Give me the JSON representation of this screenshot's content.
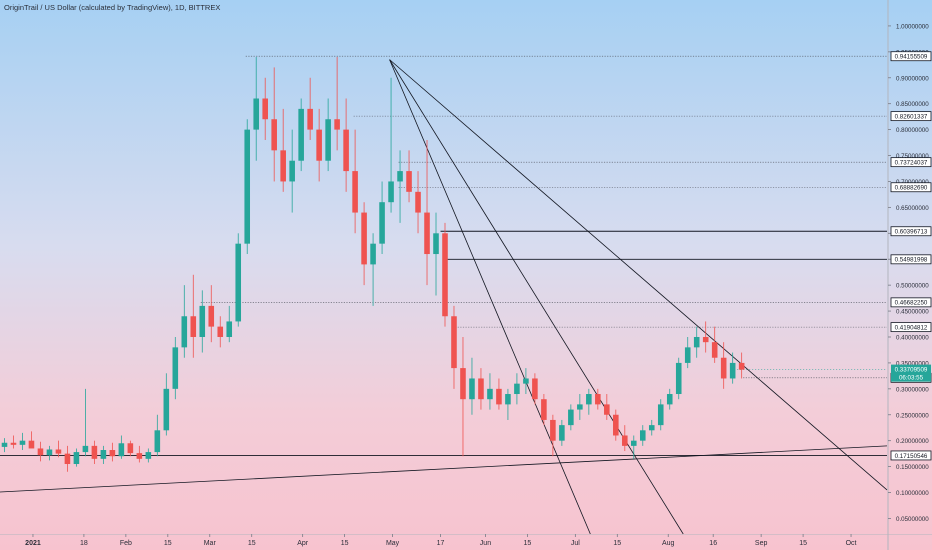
{
  "chart_data": {
    "type": "candlestick",
    "title": "OriginTrail / US Dollar (calculated by TradingView), 1D, BITTREX",
    "colors": {
      "up": "#26a69a",
      "down": "#ef5350",
      "line": "#131722",
      "price_tag": "#26a69a"
    },
    "x_axis": {
      "range": [
        "2020-12-21",
        "2021-10-13"
      ],
      "ticks": [
        {
          "date": "2021-01-01",
          "label": "2021"
        },
        {
          "date": "2021-01-18",
          "label": "18"
        },
        {
          "date": "2021-02-01",
          "label": "Feb"
        },
        {
          "date": "2021-02-15",
          "label": "15"
        },
        {
          "date": "2021-03-01",
          "label": "Mar"
        },
        {
          "date": "2021-03-15",
          "label": "15"
        },
        {
          "date": "2021-04-01",
          "label": "Apr"
        },
        {
          "date": "2021-04-15",
          "label": "15"
        },
        {
          "date": "2021-05-01",
          "label": "May"
        },
        {
          "date": "2021-05-17",
          "label": "17"
        },
        {
          "date": "2021-06-01",
          "label": "Jun"
        },
        {
          "date": "2021-06-15",
          "label": "15"
        },
        {
          "date": "2021-07-01",
          "label": "Jul"
        },
        {
          "date": "2021-07-15",
          "label": "15"
        },
        {
          "date": "2021-08-01",
          "label": "Aug"
        },
        {
          "date": "2021-08-16",
          "label": "16"
        },
        {
          "date": "2021-09-01",
          "label": "Sep"
        },
        {
          "date": "2021-09-15",
          "label": "15"
        },
        {
          "date": "2021-10-01",
          "label": "Oct"
        }
      ]
    },
    "y_axis": {
      "range": [
        0.02,
        1.05
      ],
      "ticks": [
        "0.05000000",
        "0.10000000",
        "0.15000000",
        "0.20000000",
        "0.25000000",
        "0.30000000",
        "0.35000000",
        "0.40000000",
        "0.45000000",
        "0.50000000",
        "0.55000000",
        "0.60000000",
        "0.65000000",
        "0.70000000",
        "0.75000000",
        "0.80000000",
        "0.85000000",
        "0.90000000",
        "0.95000000",
        "1.00000000"
      ]
    },
    "level_labels": [
      {
        "value": 0.94155509,
        "label": "0.94155509"
      },
      {
        "value": 0.82601337,
        "label": "0.82601337"
      },
      {
        "value": 0.73724037,
        "label": "0.73724037"
      },
      {
        "value": 0.6888269,
        "label": "0.68882690"
      },
      {
        "value": 0.60396713,
        "label": "0.60396713"
      },
      {
        "value": 0.54981998,
        "label": "0.54981998"
      },
      {
        "value": 0.4668225,
        "label": "0.46682250"
      },
      {
        "value": 0.41904812,
        "label": "0.41904812"
      },
      {
        "value": 0.32127923,
        "label": "0.32127923"
      },
      {
        "value": 0.17150546,
        "label": "0.17150546"
      }
    ],
    "price_tag": {
      "value": 0.33709509,
      "label": "0.33709509",
      "countdown": "06:03:55"
    },
    "horizontal_levels": [
      {
        "value": 0.94155509,
        "from": "2021-03-13",
        "to": "2021-10-13",
        "style": "dotted"
      },
      {
        "value": 0.82601337,
        "from": "2021-04-18",
        "to": "2021-10-13",
        "style": "dotted"
      },
      {
        "value": 0.73724037,
        "from": "2021-05-03",
        "to": "2021-10-13",
        "style": "dotted"
      },
      {
        "value": 0.6888269,
        "from": "2021-05-03",
        "to": "2021-10-13",
        "style": "dotted"
      },
      {
        "value": 0.60396713,
        "from": "2021-05-17",
        "to": "2021-10-13",
        "style": "solid"
      },
      {
        "value": 0.54981998,
        "from": "2021-05-18",
        "to": "2021-10-13",
        "style": "solid"
      },
      {
        "value": 0.4668225,
        "from": "2021-02-26",
        "to": "2021-10-13",
        "style": "dotted"
      },
      {
        "value": 0.41904812,
        "from": "2021-05-21",
        "to": "2021-10-13",
        "style": "dotted"
      },
      {
        "value": 0.32127923,
        "from": "2021-08-26",
        "to": "2021-10-13",
        "style": "dotted"
      },
      {
        "value": 0.17150546,
        "from": "2020-12-21",
        "to": "2021-10-13",
        "style": "solid"
      }
    ],
    "trend_lines": [
      {
        "from": [
          "2021-04-30",
          0.935
        ],
        "to": [
          "2021-07-06",
          0.02
        ]
      },
      {
        "from": [
          "2021-04-30",
          0.935
        ],
        "to": [
          "2021-08-06",
          0.02
        ]
      },
      {
        "from": [
          "2021-04-30",
          0.935
        ],
        "to": [
          "2021-10-13",
          0.105
        ]
      },
      {
        "from": [
          "2020-12-21",
          0.101
        ],
        "to": [
          "2021-10-13",
          0.19
        ]
      }
    ],
    "candles": [
      [
        "2020-12-21",
        0.188,
        0.205,
        0.178,
        0.196
      ],
      [
        "2020-12-24",
        0.196,
        0.21,
        0.185,
        0.192
      ],
      [
        "2020-12-27",
        0.192,
        0.215,
        0.182,
        0.2
      ],
      [
        "2020-12-30",
        0.2,
        0.218,
        0.19,
        0.185
      ],
      [
        "2021-01-02",
        0.185,
        0.198,
        0.16,
        0.172
      ],
      [
        "2021-01-05",
        0.172,
        0.19,
        0.162,
        0.183
      ],
      [
        "2021-01-08",
        0.183,
        0.2,
        0.168,
        0.175
      ],
      [
        "2021-01-11",
        0.175,
        0.19,
        0.14,
        0.155
      ],
      [
        "2021-01-14",
        0.155,
        0.185,
        0.15,
        0.178
      ],
      [
        "2021-01-17",
        0.178,
        0.3,
        0.17,
        0.19
      ],
      [
        "2021-01-20",
        0.19,
        0.2,
        0.155,
        0.165
      ],
      [
        "2021-01-23",
        0.165,
        0.19,
        0.155,
        0.182
      ],
      [
        "2021-01-26",
        0.182,
        0.196,
        0.16,
        0.17
      ],
      [
        "2021-01-29",
        0.17,
        0.21,
        0.165,
        0.195
      ],
      [
        "2021-02-01",
        0.195,
        0.2,
        0.17,
        0.176
      ],
      [
        "2021-02-04",
        0.176,
        0.19,
        0.158,
        0.165
      ],
      [
        "2021-02-07",
        0.165,
        0.185,
        0.158,
        0.178
      ],
      [
        "2021-02-10",
        0.178,
        0.25,
        0.17,
        0.22
      ],
      [
        "2021-02-13",
        0.22,
        0.33,
        0.21,
        0.3
      ],
      [
        "2021-02-16",
        0.3,
        0.4,
        0.28,
        0.38
      ],
      [
        "2021-02-19",
        0.38,
        0.5,
        0.36,
        0.44
      ],
      [
        "2021-02-22",
        0.44,
        0.52,
        0.36,
        0.4
      ],
      [
        "2021-02-25",
        0.4,
        0.49,
        0.37,
        0.46
      ],
      [
        "2021-02-28",
        0.46,
        0.5,
        0.39,
        0.42
      ],
      [
        "2021-03-03",
        0.42,
        0.44,
        0.38,
        0.4
      ],
      [
        "2021-03-06",
        0.4,
        0.46,
        0.39,
        0.43
      ],
      [
        "2021-03-09",
        0.43,
        0.6,
        0.42,
        0.58
      ],
      [
        "2021-03-12",
        0.58,
        0.82,
        0.56,
        0.8
      ],
      [
        "2021-03-15",
        0.8,
        0.94,
        0.74,
        0.86
      ],
      [
        "2021-03-18",
        0.86,
        0.9,
        0.78,
        0.82
      ],
      [
        "2021-03-21",
        0.82,
        0.92,
        0.7,
        0.76
      ],
      [
        "2021-03-24",
        0.76,
        0.84,
        0.68,
        0.7
      ],
      [
        "2021-03-27",
        0.7,
        0.8,
        0.64,
        0.74
      ],
      [
        "2021-03-30",
        0.74,
        0.86,
        0.72,
        0.84
      ],
      [
        "2021-04-02",
        0.84,
        0.9,
        0.78,
        0.8
      ],
      [
        "2021-04-05",
        0.8,
        0.84,
        0.7,
        0.74
      ],
      [
        "2021-04-08",
        0.74,
        0.86,
        0.72,
        0.82
      ],
      [
        "2021-04-11",
        0.82,
        0.94,
        0.76,
        0.8
      ],
      [
        "2021-04-14",
        0.8,
        0.86,
        0.68,
        0.72
      ],
      [
        "2021-04-17",
        0.72,
        0.8,
        0.6,
        0.64
      ],
      [
        "2021-04-20",
        0.64,
        0.66,
        0.5,
        0.54
      ],
      [
        "2021-04-23",
        0.54,
        0.6,
        0.46,
        0.58
      ],
      [
        "2021-04-26",
        0.58,
        0.7,
        0.56,
        0.66
      ],
      [
        "2021-04-29",
        0.66,
        0.9,
        0.64,
        0.7
      ],
      [
        "2021-05-02",
        0.7,
        0.76,
        0.62,
        0.72
      ],
      [
        "2021-05-05",
        0.72,
        0.76,
        0.66,
        0.68
      ],
      [
        "2021-05-08",
        0.68,
        0.72,
        0.6,
        0.64
      ],
      [
        "2021-05-11",
        0.64,
        0.78,
        0.5,
        0.56
      ],
      [
        "2021-05-14",
        0.56,
        0.64,
        0.48,
        0.6
      ],
      [
        "2021-05-17",
        0.6,
        0.62,
        0.42,
        0.44
      ],
      [
        "2021-05-20",
        0.44,
        0.46,
        0.3,
        0.34
      ],
      [
        "2021-05-23",
        0.34,
        0.4,
        0.17,
        0.28
      ],
      [
        "2021-05-26",
        0.28,
        0.36,
        0.25,
        0.32
      ],
      [
        "2021-05-29",
        0.32,
        0.34,
        0.26,
        0.28
      ],
      [
        "2021-06-01",
        0.28,
        0.33,
        0.26,
        0.3
      ],
      [
        "2021-06-04",
        0.3,
        0.32,
        0.26,
        0.27
      ],
      [
        "2021-06-07",
        0.27,
        0.3,
        0.24,
        0.29
      ],
      [
        "2021-06-10",
        0.29,
        0.33,
        0.27,
        0.31
      ],
      [
        "2021-06-13",
        0.31,
        0.34,
        0.29,
        0.32
      ],
      [
        "2021-06-16",
        0.32,
        0.33,
        0.27,
        0.28
      ],
      [
        "2021-06-19",
        0.28,
        0.29,
        0.23,
        0.24
      ],
      [
        "2021-06-22",
        0.24,
        0.25,
        0.17,
        0.2
      ],
      [
        "2021-06-25",
        0.2,
        0.24,
        0.19,
        0.23
      ],
      [
        "2021-06-28",
        0.23,
        0.27,
        0.22,
        0.26
      ],
      [
        "2021-07-01",
        0.26,
        0.29,
        0.24,
        0.27
      ],
      [
        "2021-07-04",
        0.27,
        0.3,
        0.25,
        0.29
      ],
      [
        "2021-07-07",
        0.29,
        0.3,
        0.26,
        0.27
      ],
      [
        "2021-07-10",
        0.27,
        0.29,
        0.24,
        0.25
      ],
      [
        "2021-07-13",
        0.25,
        0.26,
        0.2,
        0.21
      ],
      [
        "2021-07-16",
        0.21,
        0.23,
        0.18,
        0.19
      ],
      [
        "2021-07-19",
        0.19,
        0.21,
        0.165,
        0.2
      ],
      [
        "2021-07-22",
        0.2,
        0.23,
        0.19,
        0.22
      ],
      [
        "2021-07-25",
        0.22,
        0.24,
        0.21,
        0.23
      ],
      [
        "2021-07-28",
        0.23,
        0.28,
        0.22,
        0.27
      ],
      [
        "2021-07-31",
        0.27,
        0.3,
        0.26,
        0.29
      ],
      [
        "2021-08-03",
        0.29,
        0.36,
        0.28,
        0.35
      ],
      [
        "2021-08-06",
        0.35,
        0.4,
        0.34,
        0.38
      ],
      [
        "2021-08-09",
        0.38,
        0.42,
        0.36,
        0.4
      ],
      [
        "2021-08-12",
        0.4,
        0.43,
        0.37,
        0.39
      ],
      [
        "2021-08-15",
        0.39,
        0.42,
        0.35,
        0.36
      ],
      [
        "2021-08-18",
        0.36,
        0.39,
        0.3,
        0.32
      ],
      [
        "2021-08-21",
        0.32,
        0.37,
        0.31,
        0.35
      ],
      [
        "2021-08-24",
        0.35,
        0.37,
        0.32,
        0.337
      ]
    ]
  }
}
